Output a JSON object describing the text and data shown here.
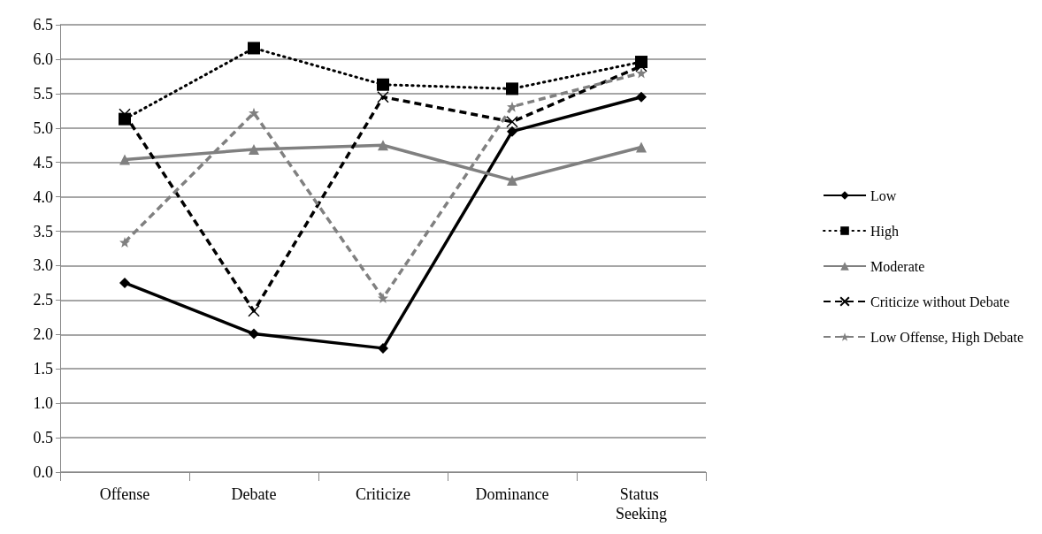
{
  "chart_data": {
    "type": "line",
    "categories": [
      "Offense",
      "Debate",
      "Criticize",
      "Dominance",
      "Status Seeking"
    ],
    "series": [
      {
        "name": "Low",
        "color": "#000000",
        "marker": "diamond",
        "line_style": "solid",
        "values": [
          2.75,
          2.01,
          1.8,
          4.95,
          5.45
        ]
      },
      {
        "name": "High",
        "color": "#000000",
        "marker": "square",
        "line_style": "dotted",
        "values": [
          5.13,
          6.16,
          5.63,
          5.57,
          5.96
        ]
      },
      {
        "name": "Moderate",
        "color": "#808080",
        "marker": "triangle",
        "line_style": "solid",
        "values": [
          4.54,
          4.69,
          4.75,
          4.24,
          4.72
        ]
      },
      {
        "name": "Criticize without Debate",
        "color": "#000000",
        "marker": "cross",
        "line_style": "dashed",
        "values": [
          5.2,
          2.34,
          5.45,
          5.09,
          5.9
        ]
      },
      {
        "name": "Low Offense, High Debate",
        "color": "#808080",
        "marker": "star",
        "line_style": "dashed",
        "values": [
          3.34,
          5.22,
          2.53,
          5.31,
          5.8
        ]
      }
    ],
    "ylim": [
      0,
      6.5
    ],
    "yticks": [
      {
        "value": 0,
        "label": "0.0"
      },
      0.5,
      {
        "value": 1,
        "label": "1.0"
      },
      1.5,
      {
        "value": 2,
        "label": "2.0"
      },
      2.5,
      {
        "value": 3,
        "label": "3.0"
      },
      3.5,
      {
        "value": 4,
        "label": "4.0"
      },
      4.5,
      {
        "value": 5,
        "label": "5.0"
      },
      5.5,
      {
        "value": 6,
        "label": "6.0"
      },
      6.5
    ],
    "grid": "y",
    "legend": "right"
  }
}
